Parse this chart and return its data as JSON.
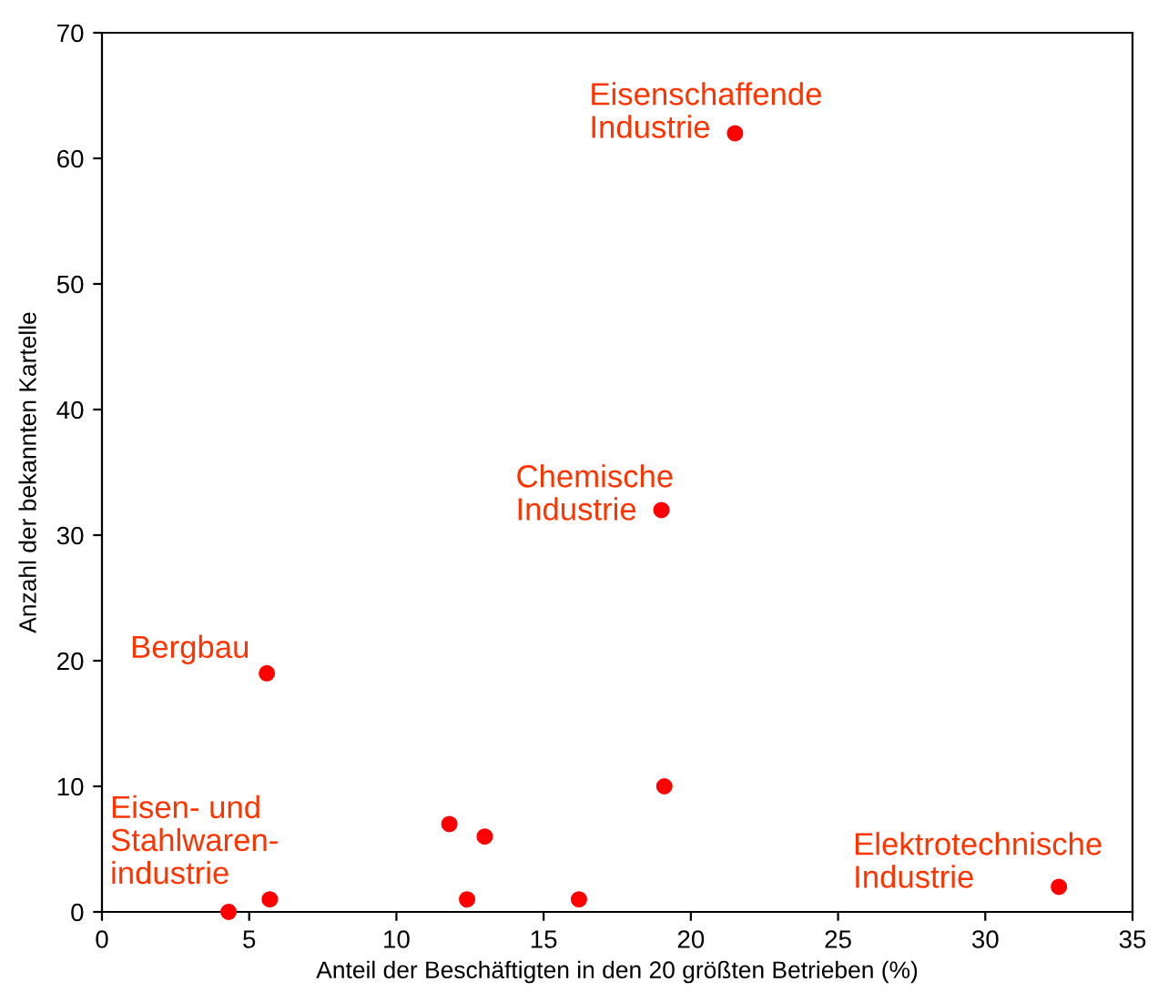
{
  "chart_data": {
    "type": "scatter",
    "xlabel": "Anteil der Beschäftigten in den 20 größten Betrieben (%)",
    "ylabel": "Anzahl der bekannten Kartelle",
    "series": [
      {
        "color": "#ff0000",
        "x": [
          21.5,
          19.0,
          5.6,
          19.1,
          11.8,
          13.0,
          5.7,
          4.3,
          12.4,
          16.2,
          32.5
        ],
        "values": [
          62,
          32,
          19,
          10,
          7,
          6,
          1,
          0,
          1,
          1,
          2
        ]
      }
    ],
    "xlim": [
      0,
      35
    ],
    "xticks": [
      0,
      5,
      10,
      15,
      20,
      25,
      30,
      35
    ],
    "ylim": [
      0,
      70
    ],
    "yticks": [
      0,
      10,
      20,
      30,
      40,
      50,
      60,
      70
    ],
    "marker": "circle",
    "grid": false,
    "annotations": [
      {
        "text": "Eisenschaffende\nIndustrie",
        "x": 21.5,
        "y": 62
      },
      {
        "text": "Chemische\nIndustrie",
        "x": 19.0,
        "y": 32
      },
      {
        "text": "Bergbau",
        "x": 5.6,
        "y": 19
      },
      {
        "text": "Eisen- und\nStahlwaren-\nindustrie",
        "x": 4.3,
        "y": 0
      },
      {
        "text": "Elektrotechnische\nIndustrie",
        "x": 32.5,
        "y": 2
      }
    ]
  }
}
